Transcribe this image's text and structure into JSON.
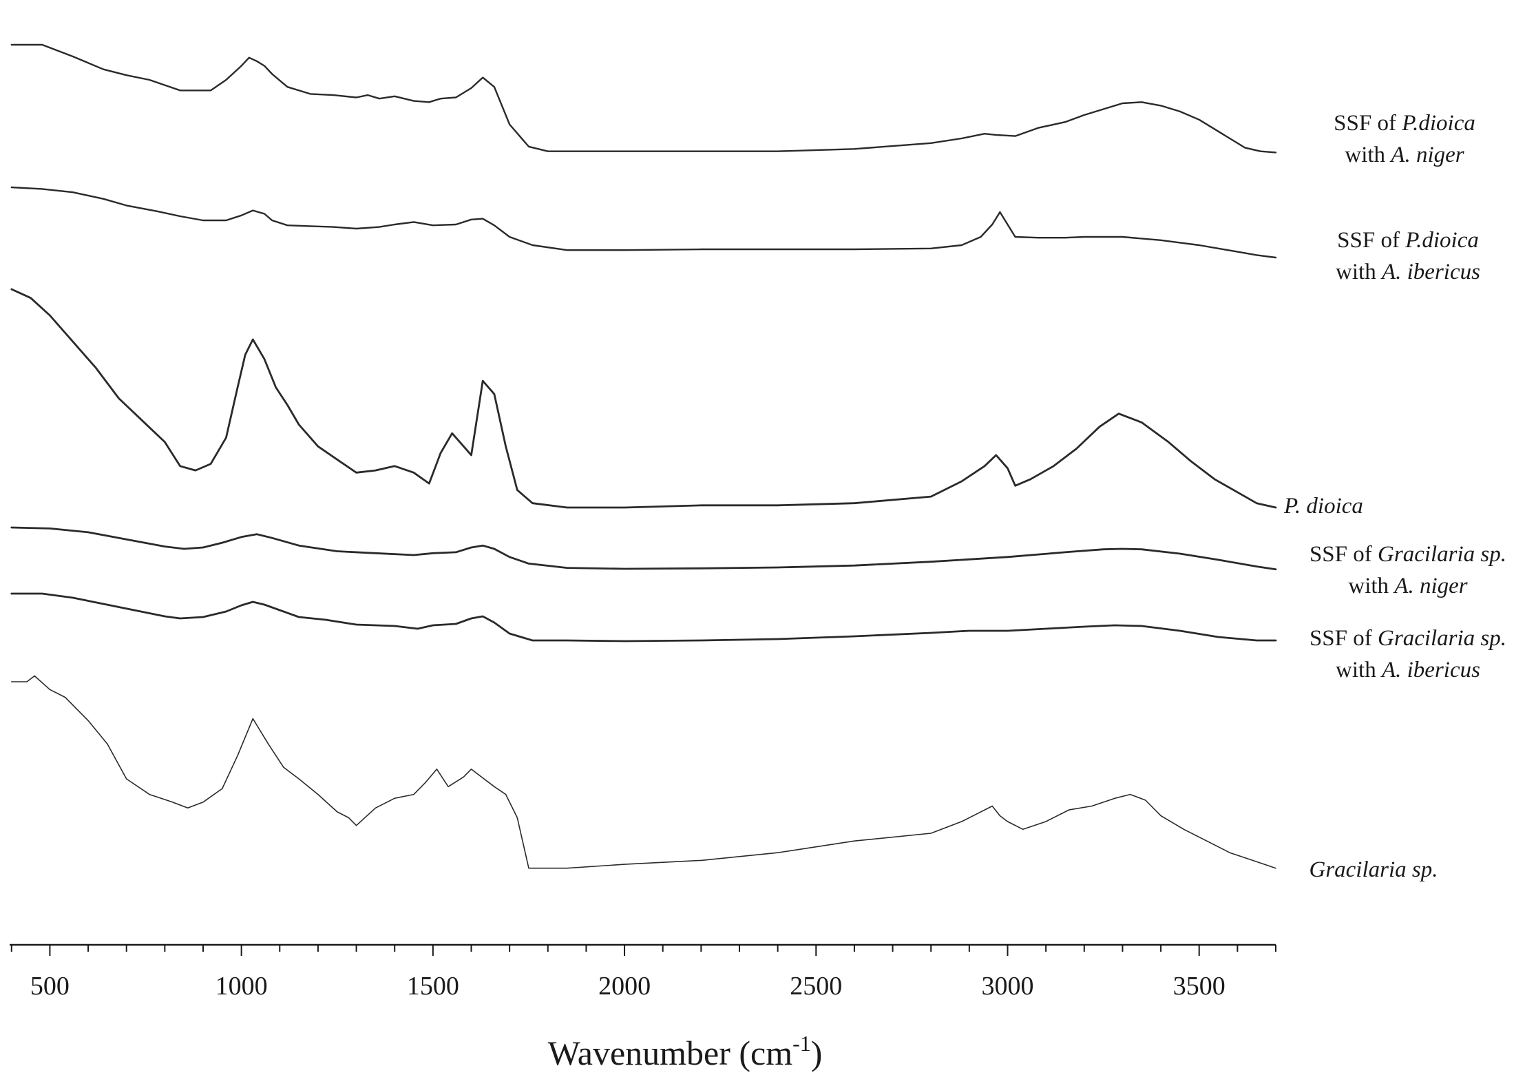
{
  "chart_data": {
    "type": "line",
    "xlabel": "Wavenumber (cm",
    "xlabel_sup": "-1",
    "xlabel_close": ")",
    "ylabel": "",
    "xlim": [
      395,
      3700
    ],
    "xticks": [
      500,
      1000,
      1500,
      2000,
      2500,
      3000,
      3500
    ],
    "xtick_labels": [
      "500",
      "1000",
      "1500",
      "2000",
      "2500",
      "3000",
      "3500"
    ],
    "minor_tick_step": 100,
    "grid": false,
    "legend": "none (series labelled at right end of each trace)",
    "line_color": "#2a2a2a",
    "y_note": "traces are vertically offset; values are relative signal on a 0-100 scale within each trace's band",
    "series": [
      {
        "name": "SSF of P.dioica with A. niger",
        "label_lines": [
          [
            {
              "t": "SSF of ",
              "i": false
            },
            {
              "t": "P.dioica",
              "i": true
            }
          ],
          [
            {
              "t": "with ",
              "i": false
            },
            {
              "t": "A. niger",
              "i": true
            }
          ]
        ],
        "x": [
          400,
          480,
          560,
          640,
          700,
          760,
          840,
          920,
          960,
          1000,
          1020,
          1040,
          1060,
          1080,
          1120,
          1180,
          1240,
          1300,
          1330,
          1360,
          1400,
          1450,
          1490,
          1520,
          1560,
          1600,
          1630,
          1660,
          1700,
          1750,
          1800,
          2000,
          2200,
          2400,
          2600,
          2800,
          2880,
          2940,
          2970,
          3020,
          3080,
          3150,
          3200,
          3250,
          3300,
          3350,
          3400,
          3450,
          3500,
          3560,
          3620,
          3660,
          3700
        ],
        "y": [
          100,
          100,
          90,
          79,
          74,
          70,
          61,
          61,
          70,
          82,
          89,
          86,
          82,
          75,
          64,
          58,
          57,
          55,
          57,
          54,
          56,
          52,
          51,
          54,
          55,
          63,
          72,
          64,
          32,
          13,
          9,
          9,
          9,
          9,
          11,
          16,
          20,
          24,
          23,
          22,
          29,
          34,
          40,
          45,
          50,
          51,
          48,
          43,
          36,
          24,
          12,
          9,
          8
        ]
      },
      {
        "name": "SSF of P.dioica with A. ibericus",
        "label_lines": [
          [
            {
              "t": "SSF of ",
              "i": false
            },
            {
              "t": "P.dioica",
              "i": true
            }
          ],
          [
            {
              "t": "with ",
              "i": false
            },
            {
              "t": "A. ibericus",
              "i": true
            }
          ]
        ],
        "x": [
          400,
          480,
          560,
          640,
          700,
          780,
          840,
          900,
          960,
          1000,
          1030,
          1060,
          1080,
          1120,
          1180,
          1240,
          1300,
          1360,
          1400,
          1450,
          1500,
          1560,
          1600,
          1630,
          1660,
          1700,
          1760,
          1850,
          2000,
          2200,
          2400,
          2600,
          2800,
          2880,
          2930,
          2960,
          2980,
          3000,
          3020,
          3080,
          3150,
          3200,
          3250,
          3300,
          3350,
          3400,
          3450,
          3500,
          3550,
          3600,
          3650,
          3700
        ],
        "y": [
          100,
          98,
          94,
          86,
          78,
          71,
          65,
          60,
          60,
          66,
          72,
          68,
          60,
          54,
          53,
          52,
          50,
          52,
          55,
          58,
          54,
          55,
          61,
          62,
          54,
          40,
          30,
          24,
          24,
          25,
          25,
          25,
          26,
          30,
          40,
          55,
          70,
          55,
          40,
          39,
          39,
          40,
          40,
          40,
          38,
          36,
          33,
          30,
          26,
          22,
          18,
          15
        ]
      },
      {
        "name": "P. dioica",
        "label_lines": [
          [
            {
              "t": "P. dioica",
              "i": true
            }
          ]
        ],
        "x": [
          400,
          450,
          500,
          560,
          620,
          680,
          740,
          800,
          840,
          880,
          920,
          960,
          990,
          1010,
          1030,
          1060,
          1090,
          1120,
          1150,
          1200,
          1250,
          1300,
          1350,
          1400,
          1450,
          1490,
          1520,
          1550,
          1580,
          1600,
          1630,
          1660,
          1690,
          1720,
          1760,
          1850,
          2000,
          2200,
          2400,
          2600,
          2800,
          2880,
          2940,
          2970,
          3000,
          3020,
          3060,
          3120,
          3180,
          3240,
          3290,
          3350,
          3420,
          3480,
          3540,
          3600,
          3650,
          3700
        ],
        "y": [
          100,
          96,
          88,
          76,
          64,
          50,
          40,
          30,
          19,
          17,
          20,
          32,
          55,
          70,
          77,
          68,
          55,
          47,
          38,
          28,
          22,
          16,
          17,
          19,
          16,
          11,
          25,
          34,
          28,
          24,
          58,
          52,
          28,
          8,
          2,
          0,
          0,
          1,
          1,
          2,
          5,
          12,
          19,
          24,
          18,
          10,
          13,
          19,
          27,
          37,
          43,
          39,
          30,
          21,
          13,
          7,
          2,
          0
        ]
      },
      {
        "name": "SSF of Gracilaria sp. with A. niger",
        "label_lines": [
          [
            {
              "t": "SSF of ",
              "i": false
            },
            {
              "t": "Gracilaria sp.",
              "i": true
            }
          ],
          [
            {
              "t": "with ",
              "i": false
            },
            {
              "t": "A. niger",
              "i": true
            }
          ]
        ],
        "x": [
          400,
          500,
          600,
          700,
          800,
          850,
          900,
          950,
          1000,
          1040,
          1080,
          1150,
          1250,
          1350,
          1450,
          1500,
          1560,
          1600,
          1630,
          1660,
          1700,
          1750,
          1850,
          2000,
          2200,
          2400,
          2600,
          2800,
          3000,
          3150,
          3250,
          3300,
          3350,
          3450,
          3550,
          3650,
          3700
        ],
        "y": [
          100,
          98,
          90,
          75,
          60,
          55,
          58,
          68,
          80,
          86,
          78,
          62,
          50,
          46,
          42,
          46,
          48,
          58,
          62,
          55,
          38,
          24,
          15,
          13,
          14,
          16,
          20,
          28,
          38,
          48,
          54,
          55,
          54,
          45,
          32,
          18,
          12
        ]
      },
      {
        "name": "SSF of Gracilaria sp. with A. ibericus",
        "label_lines": [
          [
            {
              "t": "SSF of ",
              "i": false
            },
            {
              "t": "Gracilaria sp.",
              "i": true
            }
          ],
          [
            {
              "t": "with ",
              "i": false
            },
            {
              "t": "A. ibericus",
              "i": true
            }
          ]
        ],
        "x": [
          400,
          480,
          560,
          640,
          720,
          800,
          840,
          900,
          960,
          1000,
          1030,
          1060,
          1100,
          1150,
          1220,
          1300,
          1400,
          1460,
          1500,
          1560,
          1600,
          1630,
          1660,
          1700,
          1760,
          1850,
          2000,
          2200,
          2400,
          2600,
          2800,
          2900,
          3000,
          3100,
          3200,
          3280,
          3350,
          3450,
          3550,
          3650,
          3700
        ],
        "y": [
          100,
          100,
          94,
          85,
          76,
          67,
          64,
          66,
          74,
          83,
          88,
          84,
          76,
          66,
          62,
          55,
          53,
          49,
          54,
          56,
          64,
          67,
          58,
          42,
          32,
          32,
          31,
          32,
          34,
          38,
          43,
          46,
          46,
          49,
          52,
          54,
          53,
          46,
          37,
          32,
          32
        ]
      },
      {
        "name": "Gracilaria sp.",
        "label_lines": [
          [
            {
              "t": "Gracilaria sp.",
              "i": true
            }
          ]
        ],
        "x": [
          400,
          440,
          460,
          500,
          540,
          600,
          650,
          700,
          760,
          820,
          860,
          900,
          950,
          990,
          1030,
          1070,
          1110,
          1150,
          1200,
          1250,
          1280,
          1300,
          1350,
          1400,
          1450,
          1480,
          1510,
          1540,
          1580,
          1600,
          1620,
          1660,
          1690,
          1720,
          1750,
          1850,
          2000,
          2200,
          2400,
          2600,
          2800,
          2880,
          2920,
          2960,
          2980,
          3000,
          3040,
          3100,
          3160,
          3220,
          3280,
          3320,
          3360,
          3400,
          3460,
          3520,
          3580,
          3640,
          3700
        ],
        "y": [
          100,
          100,
          103,
          96,
          92,
          80,
          68,
          50,
          42,
          38,
          35,
          38,
          45,
          62,
          81,
          68,
          56,
          50,
          42,
          33,
          30,
          26,
          35,
          40,
          42,
          48,
          55,
          46,
          51,
          55,
          52,
          46,
          42,
          30,
          4,
          4,
          6,
          8,
          12,
          18,
          22,
          28,
          32,
          36,
          31,
          28,
          24,
          28,
          34,
          36,
          40,
          42,
          39,
          31,
          24,
          18,
          12,
          8,
          4
        ]
      }
    ]
  }
}
